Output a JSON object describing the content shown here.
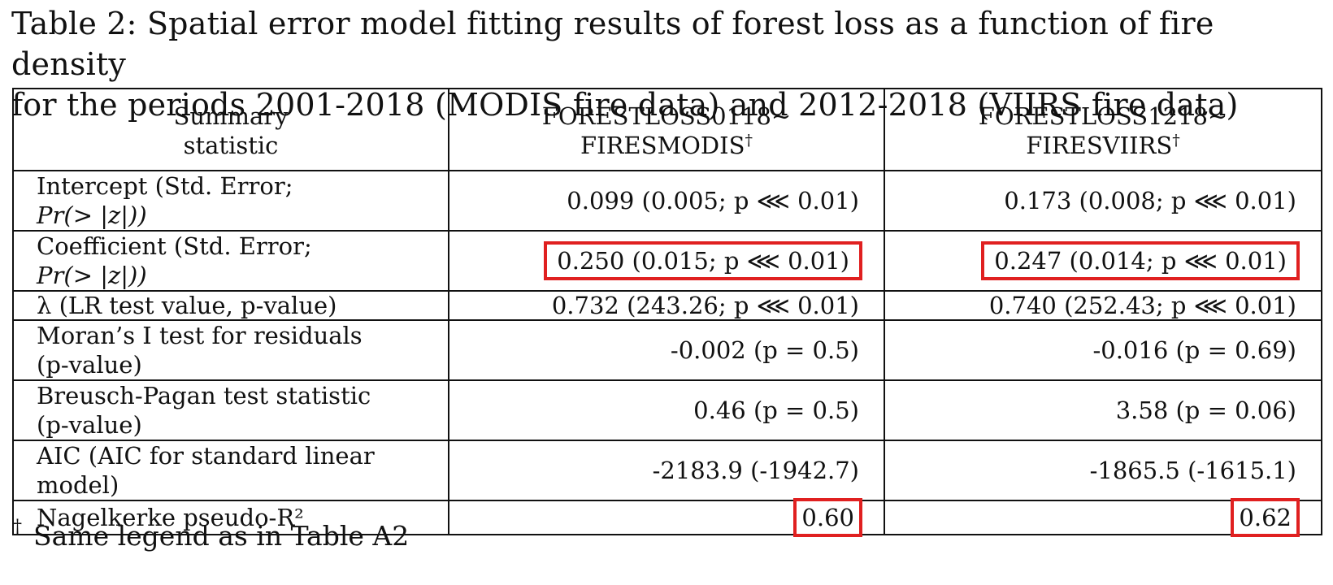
{
  "caption": {
    "line1": "Table 2: Spatial error model fitting results of forest loss as a function of fire density",
    "line2": "for the periods 2001-2018 (MODIS fire data) and 2012-2018 (VIIRS fire data)"
  },
  "table": {
    "header": {
      "col1_line1": "Summary",
      "col1_line2": "statistic",
      "col2_line1": "FORESTLOSS0118∼",
      "col2_line2": "FIRESMODIS",
      "col3_line1": "FORESTLOSS1218∼",
      "col3_line2": "FIRESVIIRS",
      "dagger": "†"
    },
    "rows": [
      {
        "label_line1": "Intercept (Std. Error;",
        "label_line2": "Pr(> |z|))",
        "modis": "0.099 (0.005; p ⋘ 0.01)",
        "viirs": "0.173 (0.008; p ⋘ 0.01)"
      },
      {
        "label_line1": "Coefficient (Std. Error;",
        "label_line2": "Pr(> |z|))",
        "modis": "0.250 (0.015; p ⋘ 0.01)",
        "viirs": "0.247 (0.014; p ⋘ 0.01)"
      },
      {
        "label_line1": "λ (LR test value, p-value)",
        "modis": "0.732 (243.26; p ⋘ 0.01)",
        "viirs": "0.740 (252.43; p ⋘ 0.01)"
      },
      {
        "label_line1": "Moran’s I test for residuals",
        "label_line2": "(p-value)",
        "modis": "-0.002 (p = 0.5)",
        "viirs": "-0.016 (p = 0.69)"
      },
      {
        "label_line1": "Breusch-Pagan test statistic",
        "label_line2": "(p-value)",
        "modis": "0.46 (p = 0.5)",
        "viirs": "3.58 (p = 0.06)"
      },
      {
        "label_line1": "AIC (AIC for standard linear",
        "label_line2": "model)",
        "modis": "-2183.9 (-1942.7)",
        "viirs": "-1865.5 (-1615.1)"
      },
      {
        "label_line1": "Nagelkerke pseudo-R²",
        "modis": "0.60",
        "viirs": "0.62"
      }
    ]
  },
  "highlight_color": "#e02020",
  "footnote": {
    "dagger": "†",
    "text": "Same legend as in Table A2"
  }
}
